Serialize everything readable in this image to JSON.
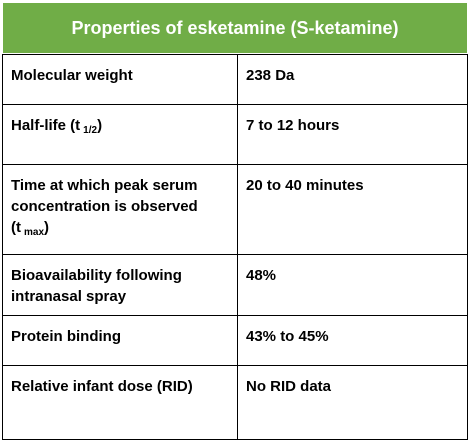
{
  "header": {
    "title": "Properties of esketamine (S-ketamine)"
  },
  "table": {
    "rows": [
      {
        "property": "Molecular weight",
        "value": "238 Da"
      },
      {
        "property": "Half-life (t",
        "property_sub": "1/2",
        "property_end": ")",
        "value": "7 to 12 hours"
      },
      {
        "property": "Time at which peak serum concentration is observed (t",
        "property_sub": "max",
        "property_end": ")",
        "value": "20 to 40 minutes"
      },
      {
        "property": "Bioavailability following intranasal spray",
        "value": "48%"
      },
      {
        "property": "Protein binding",
        "value": "43% to 45%"
      },
      {
        "property": "Relative infant dose (RID)",
        "value": "No RID data"
      }
    ]
  }
}
